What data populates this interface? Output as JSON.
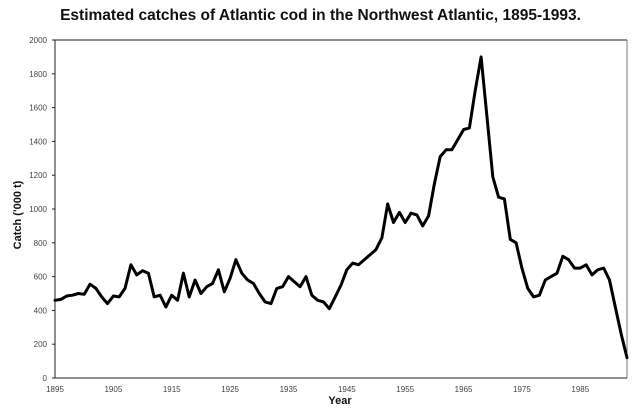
{
  "chart_data": {
    "type": "line",
    "title": "Estimated catches of Atlantic cod in the Northwest Atlantic, 1895-1993.",
    "xlabel": "Year",
    "ylabel": "Catch ('000 t)",
    "xlim": [
      1895,
      1993
    ],
    "ylim": [
      0,
      2000
    ],
    "x_ticks": [
      "1895",
      "1905",
      "1915",
      "1925",
      "1935",
      "1945",
      "1955",
      "1965",
      "1975",
      "1985"
    ],
    "y_ticks": [
      "0",
      "200",
      "400",
      "600",
      "800",
      "1000",
      "1200",
      "1400",
      "1600",
      "1800",
      "2000"
    ],
    "grid": false,
    "legend": null,
    "series": [
      {
        "name": "Catch",
        "x": [
          1895,
          1896,
          1897,
          1898,
          1899,
          1900,
          1901,
          1902,
          1903,
          1904,
          1905,
          1906,
          1907,
          1908,
          1909,
          1910,
          1911,
          1912,
          1913,
          1914,
          1915,
          1916,
          1917,
          1918,
          1919,
          1920,
          1921,
          1922,
          1923,
          1924,
          1925,
          1926,
          1927,
          1928,
          1929,
          1930,
          1931,
          1932,
          1933,
          1934,
          1935,
          1936,
          1937,
          1938,
          1939,
          1940,
          1941,
          1942,
          1943,
          1944,
          1945,
          1946,
          1947,
          1948,
          1949,
          1950,
          1951,
          1952,
          1953,
          1954,
          1955,
          1956,
          1957,
          1958,
          1959,
          1960,
          1961,
          1962,
          1963,
          1964,
          1965,
          1966,
          1967,
          1968,
          1969,
          1970,
          1971,
          1972,
          1973,
          1974,
          1975,
          1976,
          1977,
          1978,
          1979,
          1980,
          1981,
          1982,
          1983,
          1984,
          1985,
          1986,
          1987,
          1988,
          1989,
          1990,
          1991,
          1992,
          1993
        ],
        "values": [
          460,
          465,
          485,
          490,
          500,
          495,
          555,
          530,
          480,
          440,
          485,
          480,
          530,
          670,
          610,
          635,
          620,
          480,
          490,
          420,
          490,
          460,
          620,
          480,
          580,
          500,
          540,
          560,
          640,
          510,
          590,
          700,
          620,
          580,
          560,
          500,
          450,
          440,
          530,
          540,
          600,
          570,
          540,
          600,
          490,
          460,
          450,
          410,
          480,
          550,
          640,
          680,
          670,
          700,
          730,
          760,
          830,
          1030,
          920,
          980,
          920,
          975,
          965,
          900,
          960,
          1150,
          1310,
          1350,
          1350,
          1410,
          1470,
          1480,
          1700,
          1900,
          1550,
          1190,
          1070,
          1060,
          820,
          800,
          650,
          530,
          480,
          490,
          580,
          600,
          620,
          720,
          700,
          650,
          650,
          670,
          610,
          640,
          650,
          580,
          420,
          260,
          120
        ]
      }
    ]
  }
}
